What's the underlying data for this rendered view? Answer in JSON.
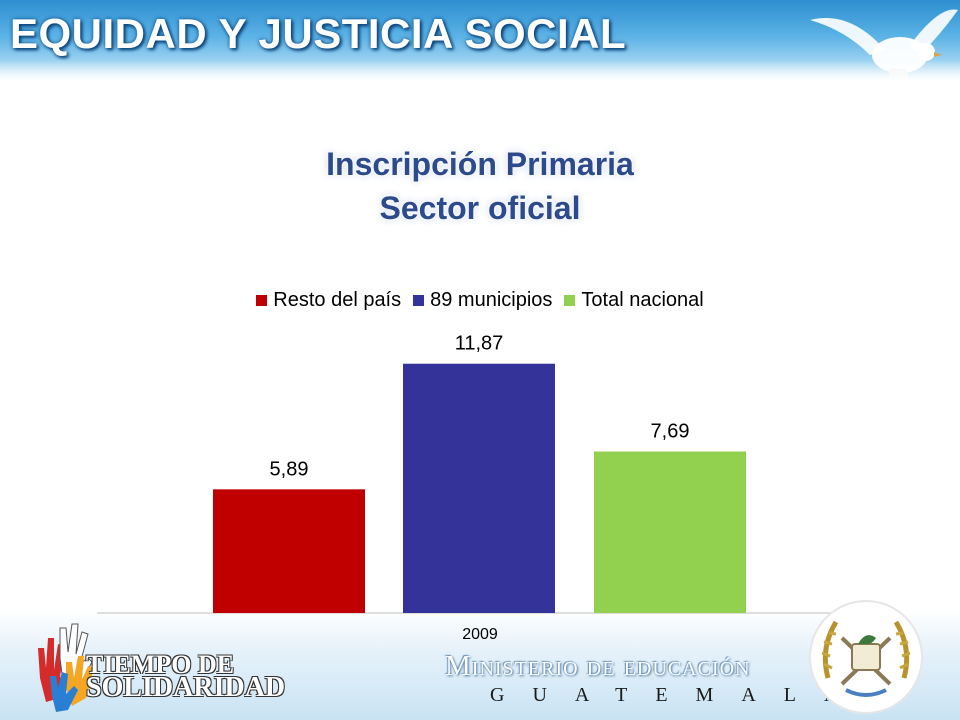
{
  "header": {
    "title": "EQUIDAD Y JUSTICIA SOCIAL"
  },
  "chart_data": {
    "type": "bar",
    "title": [
      "Inscripción Primaria",
      "Sector oficial"
    ],
    "categories": [
      "2009"
    ],
    "series": [
      {
        "name": "Resto del país",
        "values": [
          5.89
        ],
        "label": "5,89",
        "color": "#c00000"
      },
      {
        "name": "89 municipios",
        "values": [
          11.87
        ],
        "label": "11,87",
        "color": "#333399"
      },
      {
        "name": "Total nacional",
        "values": [
          7.69
        ],
        "label": "7,69",
        "color": "#92d050"
      }
    ],
    "ylim": [
      0,
      13
    ],
    "grid": false,
    "legend": "top"
  },
  "footer": {
    "logo_line1": "TIEMPO DE",
    "logo_line2": "SOLIDARIDAD",
    "ministry": "Ministerio de educación",
    "country": "GUATEMALA"
  }
}
